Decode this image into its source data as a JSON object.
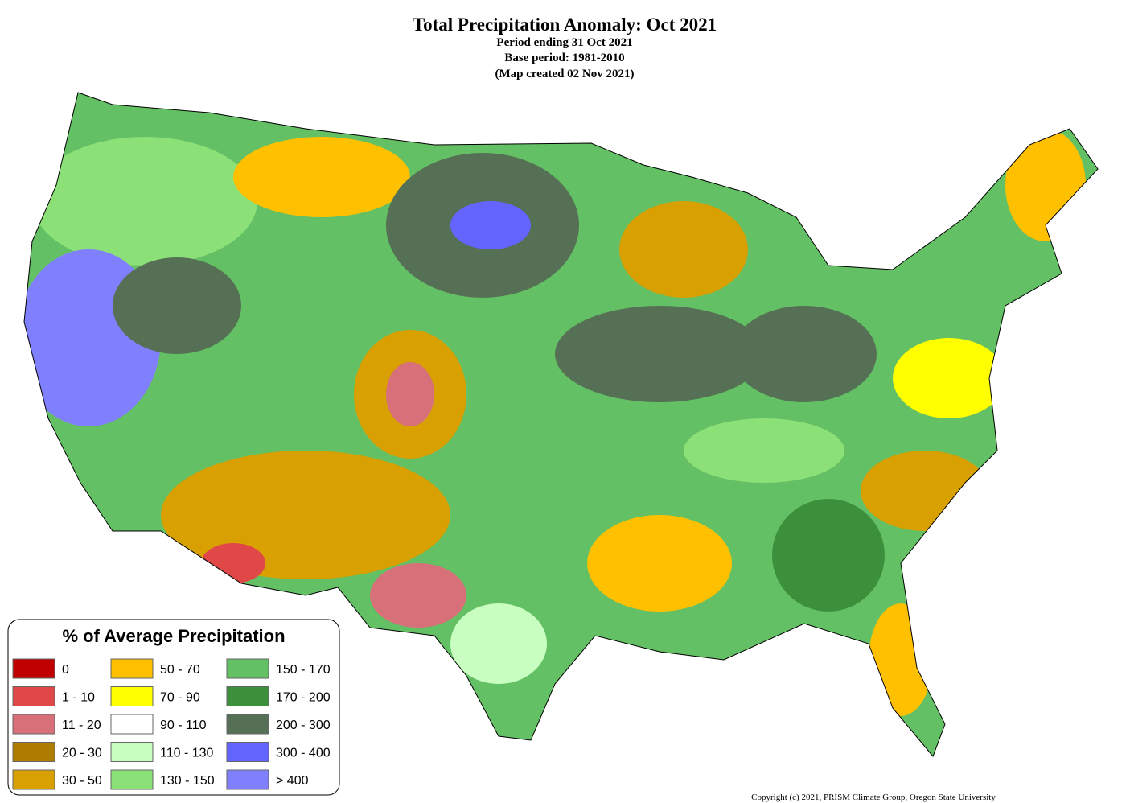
{
  "header": {
    "title": "Total Precipitation Anomaly: Oct 2021",
    "lines": [
      "Period ending 31 Oct 2021",
      "Base period: 1981-2010",
      "(Map created 02 Nov 2021)"
    ]
  },
  "legend": {
    "title": "% of Average Precipitation",
    "items": [
      {
        "label": "0",
        "color": "#c00000"
      },
      {
        "label": "1 - 10",
        "color": "#e04848"
      },
      {
        "label": "11 - 20",
        "color": "#d8707a"
      },
      {
        "label": "20 - 30",
        "color": "#b07c00"
      },
      {
        "label": "30 - 50",
        "color": "#d8a000"
      },
      {
        "label": "50 - 70",
        "color": "#ffc000"
      },
      {
        "label": "70 - 90",
        "color": "#ffff00"
      },
      {
        "label": "90 - 110",
        "color": "#ffffff"
      },
      {
        "label": "110 - 130",
        "color": "#c8ffc0"
      },
      {
        "label": "130 - 150",
        "color": "#8ce078"
      },
      {
        "label": "150 - 170",
        "color": "#64c064"
      },
      {
        "label": "170 - 200",
        "color": "#3c903c"
      },
      {
        "label": "200 - 300",
        "color": "#557055"
      },
      {
        "label": "300 - 400",
        "color": "#6464ff"
      },
      {
        "label": "> 400",
        "color": "#8080ff"
      }
    ]
  },
  "footer": {
    "copyright": "Copyright (c) 2021, PRISM Climate Group, Oregon State University"
  }
}
